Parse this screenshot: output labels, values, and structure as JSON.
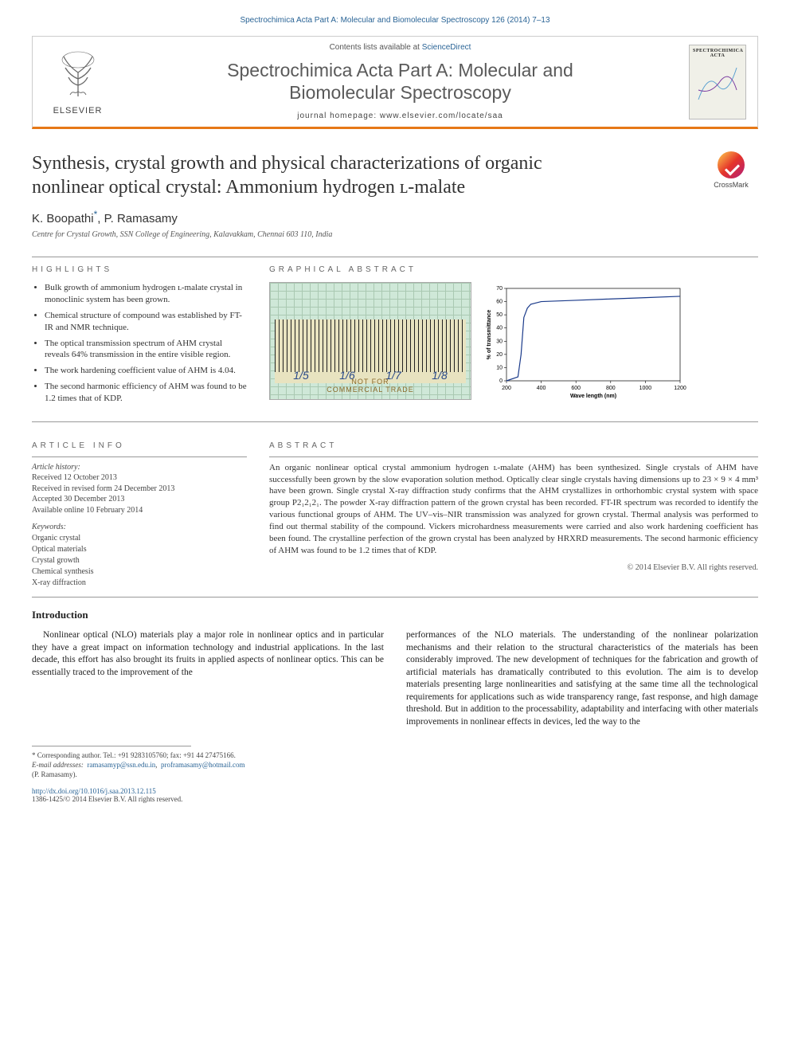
{
  "top_link": "Spectrochimica Acta Part A: Molecular and Biomolecular Spectroscopy 126 (2014) 7–13",
  "header": {
    "contents_prefix": "Contents lists available at ",
    "contents_link": "ScienceDirect",
    "journal_name_l1": "Spectrochimica Acta Part A: Molecular and",
    "journal_name_l2": "Biomolecular Spectroscopy",
    "journal_home": "journal homepage: www.elsevier.com/locate/saa",
    "publisher_name": "ELSEVIER",
    "cover_title": "SPECTROCHIMICA ACTA"
  },
  "article": {
    "title_l1": "Synthesis, crystal growth and physical characterizations of organic",
    "title_l2": "nonlinear optical crystal: Ammonium hydrogen ʟ-malate",
    "authors_html_prefix": "K. Boopathi",
    "authors_corr_marker": "*",
    "authors_html_suffix": ", P. Ramasamy",
    "affiliation": "Centre for Crystal Growth, SSN College of Engineering, Kalavakkam, Chennai 603 110, India",
    "crossmark_label": "CrossMark"
  },
  "highlights": {
    "label": "HIGHLIGHTS",
    "items": [
      "Bulk growth of ammonium hydrogen ʟ-malate crystal in monoclinic system has been grown.",
      "Chemical structure of compound was established by FT-IR and NMR technique.",
      "The optical transmission spectrum of AHM crystal reveals 64% transmission in the entire visible region.",
      "The work hardening coefficient value of AHM is 4.04.",
      "The second harmonic efficiency of AHM was found to be 1.2 times that of KDP."
    ]
  },
  "graphical_abstract": {
    "label": "GRAPHICAL ABSTRACT",
    "ruler_numbers": [
      "1/5",
      "1/6",
      "1/7",
      "1/8"
    ],
    "notfor_l1": "NOT FOR",
    "notfor_l2": "COMMERCIAL TRADE",
    "chart": {
      "type": "line",
      "x": [
        200,
        266,
        284,
        300,
        320,
        340,
        400,
        600,
        800,
        1000,
        1200
      ],
      "y": [
        0,
        3,
        20,
        48,
        55,
        58,
        60,
        61,
        62,
        63,
        64
      ],
      "xlim": [
        200,
        1200
      ],
      "ylim": [
        0,
        70
      ],
      "xticks": [
        200,
        400,
        600,
        800,
        1000,
        1200
      ],
      "yticks": [
        0,
        10,
        20,
        30,
        40,
        50,
        60,
        70
      ],
      "xlabel": "Wave length (nm)",
      "ylabel": "% of transmittance",
      "line_color": "#1a3a8a",
      "line_width": 1.2,
      "axis_color": "#000000",
      "background_color": "#ffffff",
      "font_size_ticks": 7,
      "font_size_labels": 7
    }
  },
  "article_info": {
    "label": "ARTICLE INFO",
    "history_label": "Article history:",
    "received": "Received 12 October 2013",
    "revised": "Received in revised form 24 December 2013",
    "accepted": "Accepted 30 December 2013",
    "online": "Available online 10 February 2014",
    "keywords_label": "Keywords:",
    "keywords": [
      "Organic crystal",
      "Optical materials",
      "Crystal growth",
      "Chemical synthesis",
      "X-ray diffraction"
    ]
  },
  "abstract": {
    "label": "ABSTRACT",
    "text": "An organic nonlinear optical crystal ammonium hydrogen ʟ-malate (AHM) has been synthesized. Single crystals of AHM have successfully been grown by the slow evaporation solution method. Optically clear single crystals having dimensions up to 23 × 9 × 4 mm³ have been grown. Single crystal X-ray diffraction study confirms that the AHM crystallizes in orthorhombic crystal system with space group P2₁2₁2₁. The powder X-ray diffraction pattern of the grown crystal has been recorded. FT-IR spectrum was recorded to identify the various functional groups of AHM. The UV–vis–NIR transmission was analyzed for grown crystal. Thermal analysis was performed to find out thermal stability of the compound. Vickers microhardness measurements were carried and also work hardening coefficient has been found. The crystalline perfection of the grown crystal has been analyzed by HRXRD measurements. The second harmonic efficiency of AHM was found to be 1.2 times that of KDP.",
    "copyright": "© 2014 Elsevier B.V. All rights reserved."
  },
  "intro": {
    "heading": "Introduction",
    "para1": "Nonlinear optical (NLO) materials play a major role in nonlinear optics and in particular they have a great impact on information technology and industrial applications. In the last decade, this effort has also brought its fruits in applied aspects of nonlinear optics. This can be essentially traced to the improvement of the",
    "para2": "performances of the NLO materials. The understanding of the nonlinear polarization mechanisms and their relation to the structural characteristics of the materials has been considerably improved. The new development of techniques for the fabrication and growth of artificial materials has dramatically contributed to this evolution. The aim is to develop materials presenting large nonlinearities and satisfying at the same time all the technological requirements for applications such as wide transparency range, fast response, and high damage threshold. But in addition to the processability, adaptability and interfacing with other materials improvements in nonlinear effects in devices, led the way to the"
  },
  "footnote": {
    "corr_label": "* Corresponding author. Tel.: +91 9283105760; fax: +91 44 27475166.",
    "email_label": "E-mail addresses:",
    "email1": "ramasamyp@ssn.edu.in",
    "email2": "proframasamy@hotmail.com",
    "email_tail": "(P. Ramasamy)."
  },
  "doi": {
    "link": "http://dx.doi.org/10.1016/j.saa.2013.12.115",
    "issn_line": "1386-1425/© 2014 Elsevier B.V. All rights reserved."
  },
  "colors": {
    "link": "#2a6496",
    "accent": "#e67817"
  }
}
